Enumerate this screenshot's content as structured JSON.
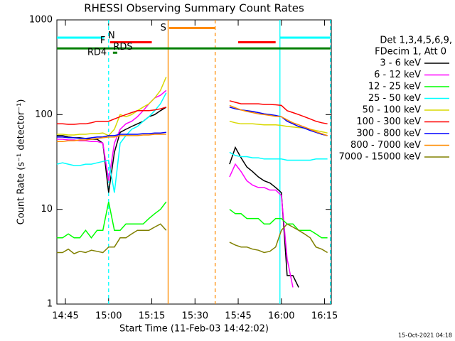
{
  "chart_data": {
    "type": "line",
    "title": "RHESSI Observing Summary Count Rates",
    "xlabel": "Start Time (11-Feb-03 14:42:02)",
    "ylabel": "Count Rate (s⁻¹ detector⁻¹)",
    "info": [
      "Det 1,3,4,5,6,9,",
      "FDecim 1, Att 0"
    ],
    "footer": "15-Oct-2021 04:18",
    "log_y": true,
    "xlim": [
      "14:42:02",
      "16:17:20"
    ],
    "ylim": [
      1,
      1000
    ],
    "xticks": [
      "14:45",
      "15:00",
      "15:15",
      "15:30",
      "15:45",
      "16:00",
      "16:15"
    ],
    "yticks": [
      1,
      10,
      100,
      1000
    ],
    "x": [
      "14:42",
      "14:44",
      "14:46",
      "14:48",
      "14:50",
      "14:52",
      "14:54",
      "14:56",
      "14:58",
      "15:00",
      "15:02",
      "15:04",
      "15:06",
      "15:08",
      "15:10",
      "15:12",
      "15:14",
      "15:16",
      "15:18",
      "15:20",
      "15:22",
      "15:24",
      "15:26",
      "15:28",
      "15:30",
      "15:32",
      "15:34",
      "15:36",
      "15:38",
      "15:40",
      "15:42",
      "15:44",
      "15:46",
      "15:48",
      "15:50",
      "15:52",
      "15:54",
      "15:56",
      "15:58",
      "16:00",
      "16:02",
      "16:04",
      "16:06",
      "16:08",
      "16:10",
      "16:12",
      "16:14",
      "16:16"
    ],
    "series": [
      {
        "name": "3 - 6 keV",
        "color": "#000000",
        "values": [
          60,
          60,
          58,
          57,
          57,
          56,
          55,
          55,
          50,
          15,
          40,
          65,
          70,
          75,
          80,
          85,
          95,
          100,
          110,
          120,
          null,
          null,
          null,
          null,
          null,
          null,
          null,
          null,
          null,
          null,
          30,
          45,
          35,
          28,
          25,
          22,
          20,
          19,
          17,
          15,
          2,
          2,
          1.5,
          null,
          null,
          null,
          null,
          null
        ]
      },
      {
        "name": "6 - 12 keV",
        "color": "#ff00ff",
        "values": [
          55,
          55,
          54,
          54,
          53,
          53,
          52,
          52,
          50,
          20,
          50,
          70,
          80,
          85,
          95,
          110,
          130,
          150,
          160,
          180,
          null,
          null,
          null,
          null,
          null,
          null,
          null,
          null,
          null,
          null,
          22,
          30,
          25,
          20,
          18,
          17,
          17,
          16,
          16,
          14,
          3,
          1.5,
          null,
          null,
          null,
          null,
          null,
          null
        ]
      },
      {
        "name": "12 - 25 keV",
        "color": "#00ff00",
        "values": [
          5,
          5,
          5.5,
          5,
          5,
          6,
          5,
          6,
          6,
          12,
          6,
          6,
          7,
          7,
          7,
          7,
          8,
          9,
          10,
          12,
          null,
          null,
          null,
          null,
          null,
          null,
          null,
          null,
          null,
          null,
          10,
          9,
          9,
          8,
          8,
          8,
          7,
          7,
          8,
          8,
          7,
          7,
          6,
          6,
          6,
          5.5,
          5,
          5
        ]
      },
      {
        "name": "25 - 50 keV",
        "color": "#00ffff",
        "values": [
          30,
          31,
          30,
          29,
          29,
          30,
          30,
          31,
          32,
          33,
          15,
          50,
          60,
          70,
          75,
          85,
          95,
          110,
          130,
          170,
          null,
          null,
          null,
          null,
          null,
          null,
          null,
          null,
          null,
          null,
          40,
          37,
          36,
          36,
          35,
          35,
          34,
          34,
          34,
          34,
          33,
          33,
          33,
          33,
          33,
          34,
          34,
          34
        ]
      },
      {
        "name": "50 - 100 keV",
        "color": "#d8d800",
        "values": [
          62,
          62,
          61,
          61,
          62,
          62,
          63,
          63,
          64,
          60,
          70,
          100,
          95,
          100,
          110,
          120,
          130,
          150,
          180,
          250,
          null,
          null,
          null,
          null,
          null,
          null,
          null,
          null,
          null,
          null,
          85,
          82,
          80,
          80,
          80,
          79,
          78,
          78,
          78,
          77,
          75,
          74,
          73,
          72,
          70,
          68,
          66,
          64
        ]
      },
      {
        "name": "100 - 300 keV",
        "color": "#ff0000",
        "values": [
          80,
          80,
          79,
          79,
          80,
          80,
          82,
          85,
          85,
          85,
          90,
          95,
          100,
          105,
          110,
          110,
          110,
          112,
          115,
          120,
          null,
          null,
          null,
          null,
          null,
          null,
          null,
          null,
          null,
          null,
          140,
          135,
          130,
          130,
          130,
          130,
          128,
          128,
          127,
          125,
          110,
          105,
          100,
          95,
          90,
          85,
          82,
          80
        ]
      },
      {
        "name": "300 - 800 keV",
        "color": "#0000ff",
        "values": [
          58,
          58,
          57,
          57,
          56,
          56,
          57,
          58,
          58,
          60,
          60,
          62,
          62,
          62,
          62,
          63,
          63,
          64,
          64,
          65,
          null,
          null,
          null,
          null,
          null,
          null,
          null,
          null,
          null,
          null,
          120,
          115,
          112,
          110,
          108,
          105,
          102,
          100,
          98,
          95,
          85,
          80,
          75,
          72,
          68,
          65,
          62,
          60
        ]
      },
      {
        "name": "800 - 7000 keV",
        "color": "#ff8c00",
        "values": [
          52,
          52,
          53,
          53,
          54,
          54,
          55,
          56,
          57,
          58,
          58,
          60,
          60,
          60,
          60,
          61,
          61,
          62,
          62,
          62,
          null,
          null,
          null,
          null,
          null,
          null,
          null,
          null,
          null,
          null,
          125,
          118,
          112,
          108,
          105,
          102,
          100,
          98,
          96,
          95,
          88,
          82,
          78,
          74,
          70,
          66,
          63,
          60
        ]
      },
      {
        "name": "7000 - 15000 keV",
        "color": "#808000",
        "values": [
          3.5,
          3.5,
          3.8,
          3.4,
          3.6,
          3.5,
          3.7,
          3.6,
          3.5,
          4,
          4,
          5,
          5,
          5.5,
          6,
          6,
          6,
          6.5,
          7,
          6,
          null,
          null,
          null,
          null,
          null,
          null,
          null,
          null,
          null,
          null,
          4.5,
          4.2,
          4,
          4,
          3.8,
          3.7,
          3.5,
          3.6,
          4,
          6,
          7,
          6.5,
          6,
          5.5,
          5,
          4,
          3.8,
          3.5
        ]
      }
    ],
    "flags": [
      {
        "color": "#00ffff",
        "x": [
          "14:42:02",
          "14:58:30"
        ],
        "y": 650
      },
      {
        "color": "#00ffff",
        "x": [
          "15:59:30",
          "16:17:00"
        ],
        "y": 650
      },
      {
        "color": "#ff0000",
        "x": [
          "15:00:30",
          "15:15:00"
        ],
        "y": 580
      },
      {
        "color": "#ff0000",
        "x": [
          "15:45:00",
          "15:58:00"
        ],
        "y": 580
      },
      {
        "color": "#ff8c00",
        "x": [
          "15:21:00",
          "15:37:00"
        ],
        "y": 820
      },
      {
        "color": "#008000",
        "x": [
          "14:42:02",
          "16:17:00"
        ],
        "y": 500
      },
      {
        "color": "#008000",
        "x": [
          "15:01:30",
          "15:03:00"
        ],
        "y": 450
      }
    ],
    "annotations": [
      {
        "text": "N",
        "color": "#00c8c8",
        "x": "15:01:00",
        "y": 680
      },
      {
        "text": "F",
        "color": "#ff0000",
        "x": "14:58:00",
        "y": 600
      },
      {
        "text": "S",
        "color": "#ff8c00",
        "x": "15:19:00",
        "y": 820
      },
      {
        "text": "RD4",
        "color": "#008000",
        "x": "14:56:00",
        "y": 450
      },
      {
        "text": "RDS",
        "color": "#008000",
        "x": "15:05:00",
        "y": 515
      }
    ],
    "vlines": [
      {
        "x": "15:00:00",
        "color": "#00ffff",
        "dashed": true
      },
      {
        "x": "15:20:40",
        "color": "#ff8c00",
        "dashed": false
      },
      {
        "x": "15:37:00",
        "color": "#ff8c00",
        "dashed": true
      },
      {
        "x": "15:59:30",
        "color": "#00ffff",
        "dashed": false
      },
      {
        "x": "16:17:00",
        "color": "#00ffff",
        "dashed": true
      }
    ]
  }
}
